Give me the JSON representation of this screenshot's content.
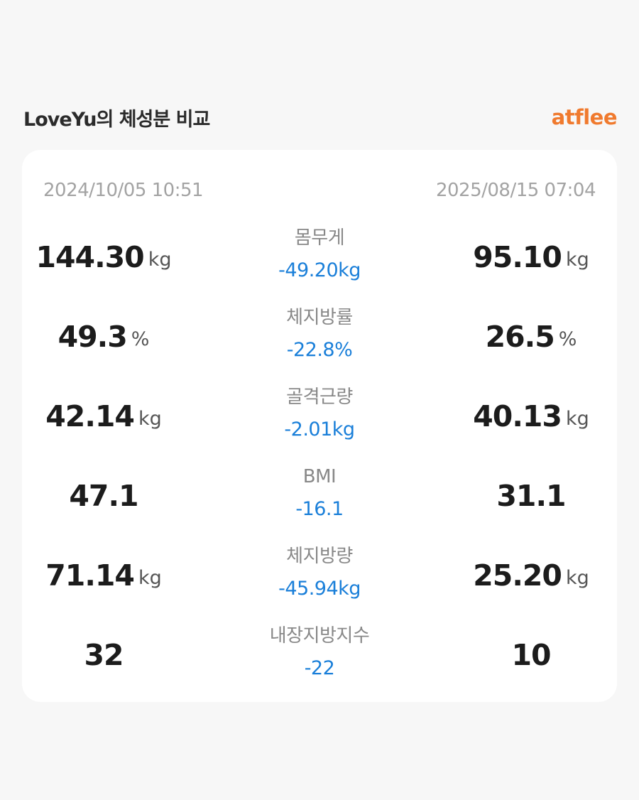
{
  "header": {
    "title": "LoveYu의 체성분 비교",
    "brand": "atflee"
  },
  "dates": {
    "before": "2024/10/05 10:51",
    "after": "2025/08/15 07:04"
  },
  "metrics": [
    {
      "label": "몸무게",
      "before": "144.30",
      "after": "95.10",
      "unit": "kg",
      "diff": "-49.20kg"
    },
    {
      "label": "체지방률",
      "before": "49.3",
      "after": "26.5",
      "unit": "%",
      "diff": "-22.8%"
    },
    {
      "label": "골격근량",
      "before": "42.14",
      "after": "40.13",
      "unit": "kg",
      "diff": "-2.01kg"
    },
    {
      "label": "BMI",
      "before": "47.1",
      "after": "31.1",
      "unit": "",
      "diff": "-16.1"
    },
    {
      "label": "체지방량",
      "before": "71.14",
      "after": "25.20",
      "unit": "kg",
      "diff": "-45.94kg"
    },
    {
      "label": "내장지방지수",
      "before": "32",
      "after": "10",
      "unit": "",
      "diff": "-22"
    }
  ],
  "colors": {
    "brand": "#f07a2e",
    "diff": "#1a7fd9",
    "background": "#f7f7f7",
    "card": "#ffffff"
  }
}
